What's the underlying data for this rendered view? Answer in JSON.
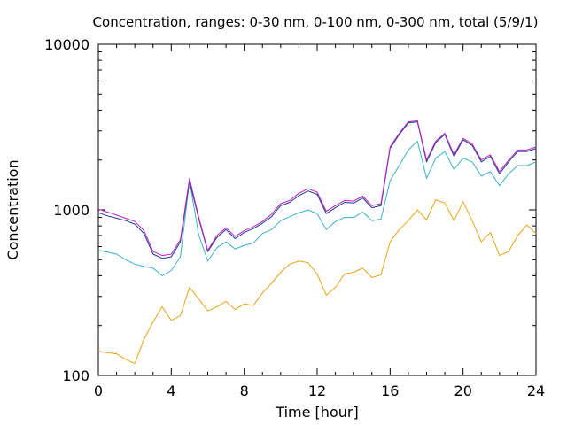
{
  "chart_data": {
    "type": "line",
    "title": "Concentration, ranges: 0-30 nm, 0-100 nm, 0-300 nm, total (5/9/1)",
    "xlabel": "Time [hour]",
    "ylabel": "Concentration",
    "xlim": [
      0,
      24
    ],
    "ylim": [
      100,
      10000
    ],
    "yscale": "log",
    "grid": false,
    "x_ticks": [
      "0",
      "4",
      "8",
      "12",
      "16",
      "20",
      "24"
    ],
    "y_ticks": [
      "100",
      "1000",
      "10000"
    ],
    "x": [
      0,
      0.5,
      1,
      1.5,
      2,
      2.5,
      3,
      3.5,
      4,
      4.5,
      5,
      5.5,
      6,
      6.5,
      7,
      7.5,
      8,
      8.5,
      9,
      9.5,
      10,
      10.5,
      11,
      11.5,
      12,
      12.5,
      13,
      13.5,
      14,
      14.5,
      15,
      15.5,
      16,
      16.5,
      17,
      17.5,
      18,
      18.5,
      19,
      19.5,
      20,
      20.5,
      21,
      21.5,
      22,
      22.5,
      23,
      23.5,
      24
    ],
    "series": [
      {
        "color": "#e8a317",
        "values": [
          140,
          137,
          135,
          125,
          118,
          165,
          210,
          260,
          215,
          230,
          340,
          290,
          245,
          260,
          280,
          250,
          270,
          265,
          315,
          360,
          420,
          470,
          490,
          480,
          410,
          305,
          340,
          410,
          420,
          445,
          390,
          405,
          640,
          760,
          860,
          1000,
          870,
          1150,
          1100,
          860,
          1120,
          860,
          640,
          730,
          530,
          560,
          700,
          810,
          720
        ]
      },
      {
        "color": "#3ab0c8",
        "values": [
          570,
          555,
          540,
          500,
          470,
          455,
          445,
          400,
          430,
          520,
          1500,
          710,
          490,
          590,
          640,
          580,
          610,
          630,
          720,
          760,
          860,
          910,
          960,
          1000,
          950,
          760,
          850,
          900,
          900,
          970,
          860,
          880,
          1500,
          1850,
          2300,
          2600,
          1550,
          2050,
          2250,
          1750,
          2050,
          1950,
          1600,
          1700,
          1400,
          1650,
          1850,
          1850,
          1950
        ]
      },
      {
        "color": "#1a3a8a",
        "values": [
          960,
          920,
          890,
          860,
          820,
          720,
          540,
          510,
          520,
          640,
          1500,
          890,
          560,
          680,
          760,
          670,
          730,
          770,
          830,
          910,
          1060,
          1110,
          1220,
          1300,
          1240,
          950,
          1030,
          1110,
          1100,
          1180,
          1030,
          1060,
          2350,
          2850,
          3350,
          3400,
          1950,
          2550,
          2850,
          2100,
          2650,
          2450,
          1950,
          2100,
          1650,
          1950,
          2250,
          2250,
          2350
        ]
      },
      {
        "color": "#c020c0",
        "values": [
          1010,
          970,
          930,
          890,
          850,
          750,
          560,
          530,
          540,
          660,
          1550,
          910,
          570,
          700,
          780,
          690,
          750,
          790,
          850,
          940,
          1090,
          1140,
          1260,
          1340,
          1280,
          980,
          1060,
          1140,
          1130,
          1210,
          1060,
          1090,
          2400,
          2900,
          3400,
          3450,
          2000,
          2600,
          2900,
          2150,
          2700,
          2500,
          2000,
          2150,
          1700,
          2000,
          2300,
          2300,
          2400
        ]
      }
    ]
  }
}
